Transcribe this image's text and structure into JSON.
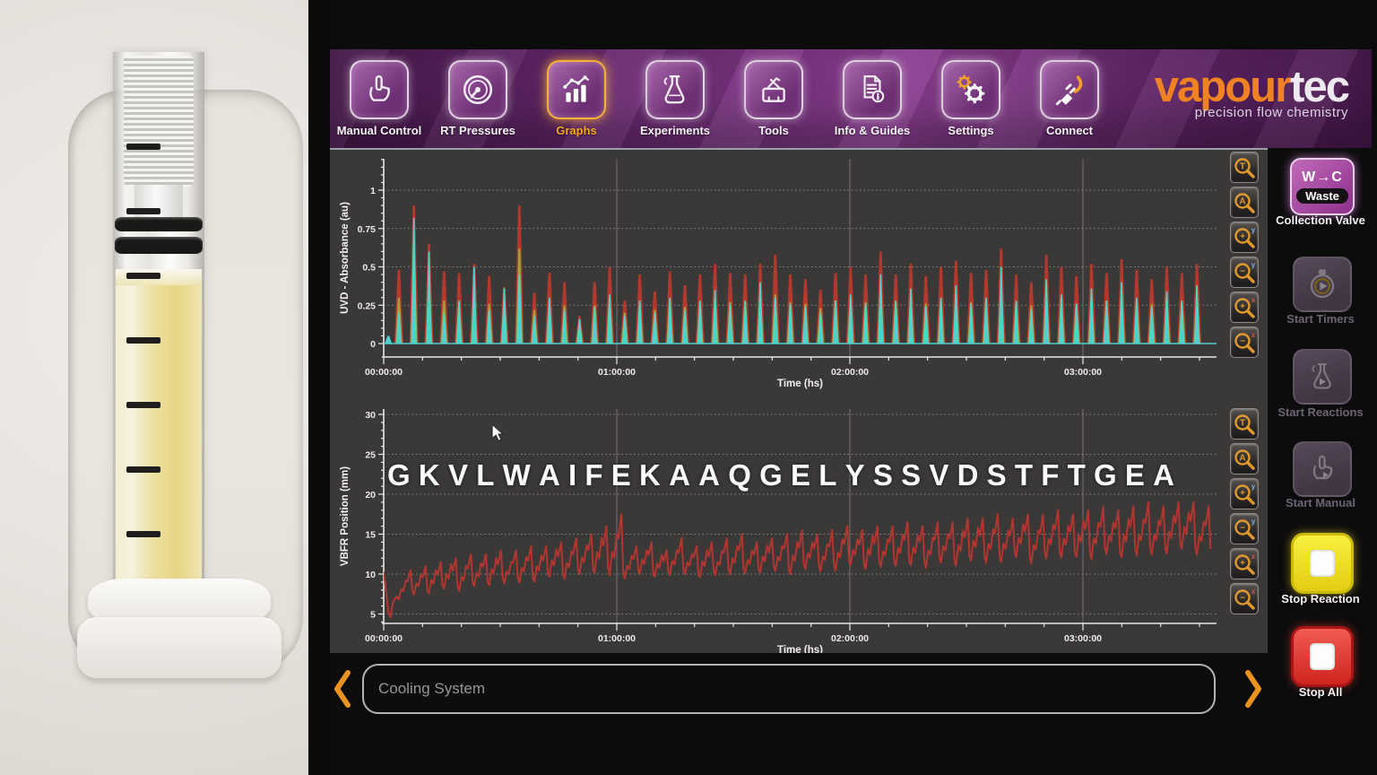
{
  "header": {
    "brand": {
      "word1": "vapour",
      "word2": "tec",
      "tagline": "precision flow chemistry"
    },
    "tabs": [
      {
        "label": "Manual Control",
        "active": false
      },
      {
        "label": "RT Pressures",
        "active": false
      },
      {
        "label": "Graphs",
        "active": true
      },
      {
        "label": "Experiments",
        "active": false
      },
      {
        "label": "Tools",
        "active": false
      },
      {
        "label": "Info & Guides",
        "active": false
      },
      {
        "label": "Settings",
        "active": false
      },
      {
        "label": "Connect",
        "active": false
      }
    ]
  },
  "chart_data": [
    {
      "type": "line",
      "title": "",
      "ylabel": "UVD - Absorbance (au)",
      "xlabel": "Time (hs)",
      "x_ticks": [
        "00:00:00",
        "01:00:00",
        "02:00:00",
        "03:00:00"
      ],
      "y_ticks": [
        0,
        0.25,
        0.5,
        0.75,
        1
      ],
      "ylim": [
        0,
        1.2
      ],
      "xlim_hours": [
        0,
        3.57
      ],
      "grid": true,
      "peak_start_hs": 0.065,
      "peak_spacing_hs": 0.0646,
      "lead_in_bump": {
        "t_hs": 0.02,
        "height": 0.05
      },
      "series": [
        {
          "name": "uv-channel-red",
          "color": "#b5382d",
          "peak_heights": [
            0.48,
            0.9,
            0.65,
            0.47,
            0.46,
            0.52,
            0.44,
            0.37,
            0.9,
            0.33,
            0.46,
            0.4,
            0.18,
            0.4,
            0.5,
            0.28,
            0.45,
            0.34,
            0.47,
            0.38,
            0.45,
            0.52,
            0.46,
            0.45,
            0.52,
            0.58,
            0.45,
            0.42,
            0.35,
            0.46,
            0.5,
            0.45,
            0.6,
            0.45,
            0.52,
            0.44,
            0.5,
            0.54,
            0.46,
            0.48,
            0.62,
            0.45,
            0.4,
            0.58,
            0.5,
            0.44,
            0.52,
            0.46,
            0.55,
            0.48,
            0.42,
            0.5,
            0.46,
            0.52
          ]
        },
        {
          "name": "uv-channel-yellow",
          "color": "#ac9d3a",
          "peak_heights": [
            0.3,
            0.65,
            0.4,
            0.28,
            0.27,
            0.3,
            0.26,
            0.3,
            0.62,
            0.22,
            0.28,
            0.25,
            0.14,
            0.25,
            0.3,
            0.2,
            0.27,
            0.22,
            0.28,
            0.24,
            0.27,
            0.3,
            0.27,
            0.27,
            0.3,
            0.32,
            0.27,
            0.26,
            0.23,
            0.28,
            0.29,
            0.27,
            0.34,
            0.27,
            0.3,
            0.26,
            0.29,
            0.31,
            0.27,
            0.28,
            0.34,
            0.27,
            0.25,
            0.32,
            0.29,
            0.26,
            0.3,
            0.28,
            0.31,
            0.28,
            0.26,
            0.29,
            0.27,
            0.3
          ]
        },
        {
          "name": "uv-channel-cyan",
          "color": "#4fd2ca",
          "peak_heights": [
            0.2,
            0.82,
            0.6,
            0.2,
            0.28,
            0.5,
            0.22,
            0.36,
            0.45,
            0.18,
            0.3,
            0.22,
            0.16,
            0.24,
            0.32,
            0.18,
            0.28,
            0.2,
            0.3,
            0.22,
            0.28,
            0.35,
            0.26,
            0.28,
            0.4,
            0.3,
            0.26,
            0.24,
            0.2,
            0.28,
            0.32,
            0.26,
            0.45,
            0.28,
            0.36,
            0.24,
            0.3,
            0.38,
            0.26,
            0.3,
            0.5,
            0.28,
            0.22,
            0.42,
            0.32,
            0.26,
            0.36,
            0.28,
            0.4,
            0.3,
            0.24,
            0.34,
            0.28,
            0.38
          ]
        }
      ]
    },
    {
      "type": "line",
      "title": "",
      "ylabel": "VBFR Position (mm)",
      "xlabel": "Time (hs)",
      "x_ticks": [
        "00:00:00",
        "01:00:00",
        "02:00:00",
        "03:00:00"
      ],
      "y_ticks": [
        5,
        10,
        15,
        20,
        25,
        30
      ],
      "ylim": [
        4,
        30
      ],
      "xlim_hours": [
        0,
        3.57
      ],
      "grid": true,
      "series_color": "#b23530",
      "cycle_start_hs": 0.065,
      "cycle_spacing_hs": 0.0646,
      "lead_in_mm": [
        [
          0,
          10.2
        ],
        [
          0.012,
          7.5
        ],
        [
          0.02,
          5.2
        ],
        [
          0.028,
          4.6
        ],
        [
          0.04,
          6.5
        ],
        [
          0.055,
          7.2
        ]
      ],
      "cycle_base_mm": [
        7.0,
        7.5,
        7.5,
        8.0,
        8.0,
        8.5,
        8.5,
        9.0,
        9.0,
        9.0,
        9.5,
        9.5,
        10.0,
        10.0,
        10.0,
        9.5,
        10.0,
        9.5,
        10.0,
        10.0,
        9.5,
        10.0,
        10.0,
        10.0,
        10.0,
        10.5,
        10.0,
        10.5,
        10.5,
        10.5,
        11.0,
        10.5,
        11.0,
        11.0,
        11.0,
        11.0,
        11.5,
        11.0,
        11.5,
        11.5,
        11.5,
        12.0,
        11.5,
        12.0,
        12.0,
        12.0,
        12.0,
        12.5,
        12.0,
        12.5,
        12.5,
        12.5,
        13.0,
        12.5
      ],
      "cycle_peak_mm": [
        10.5,
        11.0,
        11.5,
        12.0,
        12.5,
        12.5,
        13.0,
        13.0,
        13.5,
        13.5,
        14.0,
        14.5,
        15.0,
        16.0,
        17.5,
        13.5,
        14.0,
        13.0,
        14.5,
        13.5,
        14.0,
        14.5,
        15.0,
        14.0,
        14.5,
        15.0,
        15.5,
        15.0,
        15.5,
        16.0,
        15.5,
        16.0,
        16.0,
        16.5,
        16.0,
        16.5,
        16.5,
        17.0,
        17.0,
        17.5,
        17.0,
        17.5,
        17.5,
        18.0,
        17.5,
        18.0,
        18.5,
        18.0,
        18.5,
        19.0,
        18.5,
        19.0,
        19.0,
        18.5
      ],
      "overlay_sequence": "G K V L W A I F E K A A Q G E L Y S S V D S T F T G E A"
    }
  ],
  "zoom_tools": [
    {
      "glyph": "T",
      "tag": "",
      "name": "zoom-time"
    },
    {
      "glyph": "A",
      "tag": "",
      "name": "zoom-auto"
    },
    {
      "glyph": "+",
      "tag": "y",
      "name": "zoom-in-y"
    },
    {
      "glyph": "−",
      "tag": "y",
      "name": "zoom-out-y"
    },
    {
      "glyph": "+",
      "tag": "x",
      "name": "zoom-in-x"
    },
    {
      "glyph": "−",
      "tag": "x",
      "name": "zoom-out-x"
    }
  ],
  "right_panel": {
    "collection_valve": {
      "line1": "W→C",
      "badge": "Waste",
      "label": "Collection Valve"
    },
    "start_timers": {
      "label": "Start Timers",
      "enabled": false
    },
    "start_reactions": {
      "label": "Start Reactions",
      "enabled": false
    },
    "start_manual": {
      "label": "Start Manual",
      "enabled": false
    },
    "stop_reaction": {
      "label": "Stop Reaction"
    },
    "stop_all": {
      "label": "Stop All"
    }
  },
  "bottom_bar": {
    "message": "Cooling System"
  },
  "colors": {
    "accent_orange": "#f08223",
    "active_tab": "#f5a623",
    "trace_red": "#b5382d",
    "trace_yellow": "#ac9d3a",
    "trace_cyan": "#4fd2ca",
    "vbfr_red": "#b23530",
    "panel_gray": "#3b3838"
  }
}
